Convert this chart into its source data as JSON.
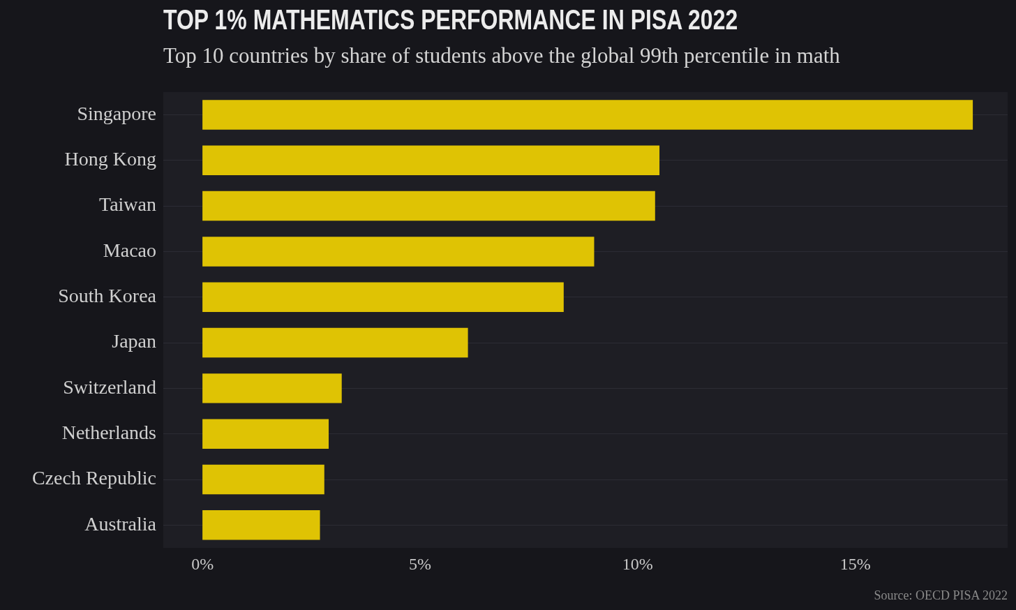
{
  "chart_data": {
    "type": "bar",
    "orientation": "horizontal",
    "title": "TOP 1% MATHEMATICS PERFORMANCE IN PISA 2022",
    "subtitle": "Top 10 countries by share of students above the global 99th percentile in math",
    "categories": [
      "Singapore",
      "Hong Kong",
      "Taiwan",
      "Macao",
      "South Korea",
      "Japan",
      "Switzerland",
      "Netherlands",
      "Czech Republic",
      "Australia"
    ],
    "values": [
      17.7,
      10.5,
      10.4,
      9.0,
      8.3,
      6.1,
      3.2,
      2.9,
      2.8,
      2.7
    ],
    "color": "#dfc304",
    "xlim": [
      -0.9,
      18.5
    ],
    "xticks": [
      {
        "value": 0,
        "label": "0%"
      },
      {
        "value": 5,
        "label": "5%"
      },
      {
        "value": 10,
        "label": "10%"
      },
      {
        "value": 15,
        "label": "15%"
      }
    ],
    "grid": "y",
    "annotations": [
      "Source: OECD PISA 2022"
    ]
  }
}
